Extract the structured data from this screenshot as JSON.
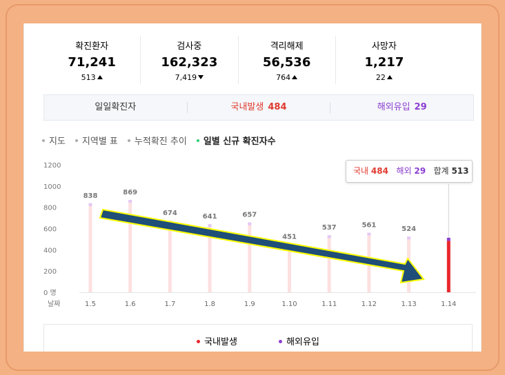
{
  "stats": [
    {
      "label": "확진환자",
      "value": "71,241",
      "change": "513",
      "dir": "up",
      "color": "#e03a2f"
    },
    {
      "label": "검사중",
      "value": "162,323",
      "change": "7,419",
      "dir": "down",
      "color": "#e7882a"
    },
    {
      "label": "격리해제",
      "value": "56,536",
      "change": "764",
      "dir": "up",
      "color": "#3b5fcf"
    },
    {
      "label": "사망자",
      "value": "1,217",
      "change": "22",
      "dir": "up",
      "color": "#111111"
    }
  ],
  "daily": {
    "title": "일일확진자",
    "domestic_label": "국내발생",
    "domestic_value": "484",
    "overseas_label": "해외유입",
    "overseas_value": "29"
  },
  "tabs": [
    "지도",
    "지역별 표",
    "누적확진 추이",
    "일별 신규 확진자수"
  ],
  "tooltip": {
    "domestic_label": "국내",
    "domestic": "484",
    "overseas_label": "해외",
    "overseas": "29",
    "total_label": "합계",
    "total": "513"
  },
  "legend": {
    "domestic": "국내발생",
    "overseas": "해외유입"
  },
  "colors": {
    "domestic": "#e8262b",
    "overseas": "#8b3fd1",
    "faded": "#fde0e0",
    "arrow": "#1f4e79",
    "arrow_outline": "#ffff00"
  },
  "chart_data": {
    "type": "bar",
    "categories": [
      "1.5",
      "1.6",
      "1.7",
      "1.8",
      "1.9",
      "1.10",
      "1.11",
      "1.12",
      "1.13",
      "1.14"
    ],
    "values": [
      838,
      869,
      674,
      641,
      657,
      451,
      537,
      561,
      524,
      513
    ],
    "data_labels": [
      "838",
      "869",
      "674",
      "641",
      "657",
      "451",
      "537",
      "561",
      "524",
      ""
    ],
    "xlabel": "날짜",
    "yticks": [
      "0 명",
      "200",
      "400",
      "600",
      "800",
      "1000",
      "1200"
    ],
    "ylim": [
      0,
      1200
    ],
    "highlight": {
      "category": "1.14",
      "domestic": 484,
      "overseas": 29
    }
  }
}
